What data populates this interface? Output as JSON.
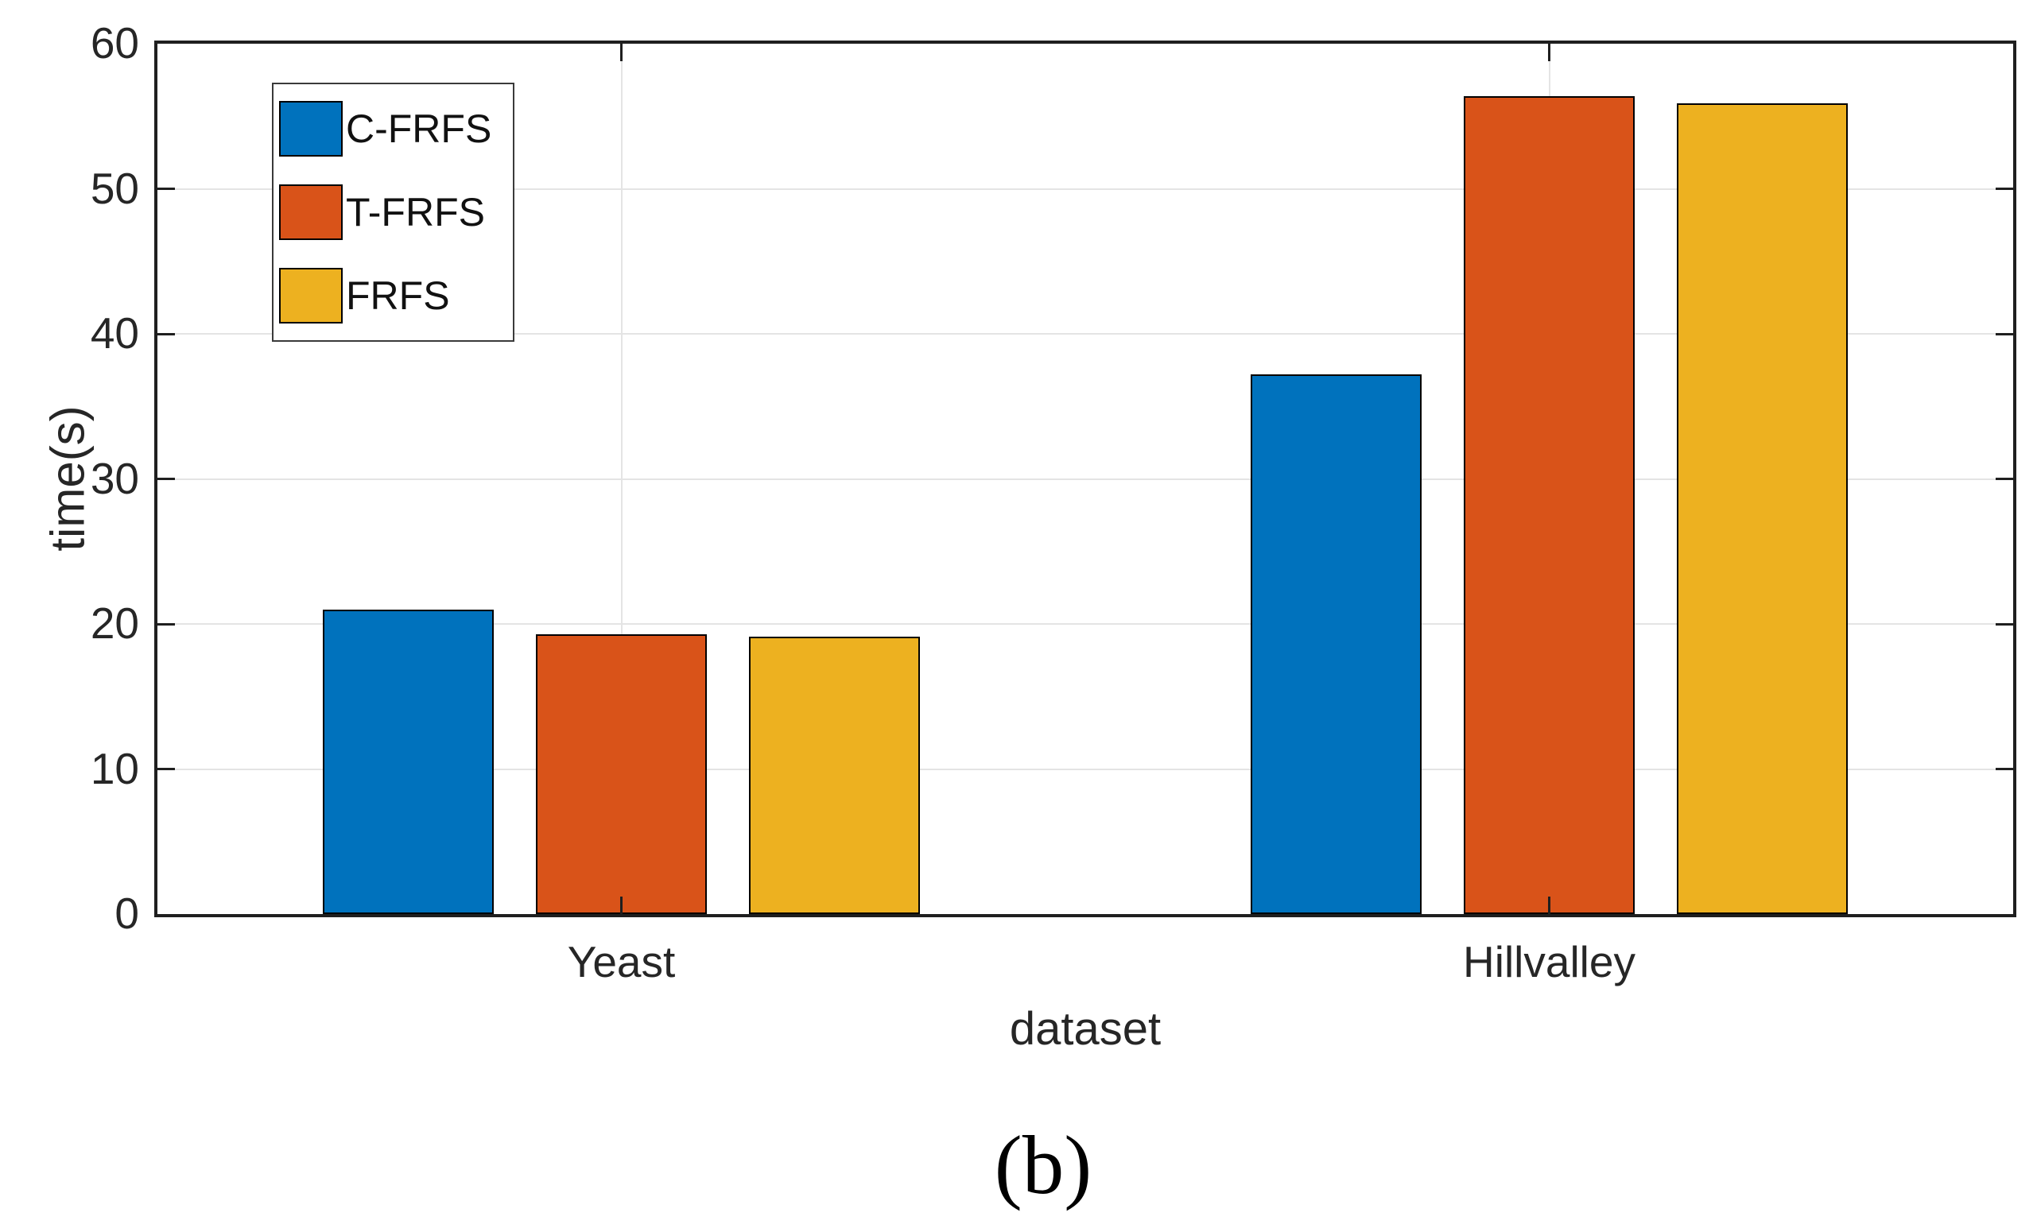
{
  "figure": {
    "caption": "(b)",
    "background_color": "#ffffff"
  },
  "axis_style": {
    "axis_color": "#1f1f1f",
    "grid_color": "#e4e4e4",
    "tick_label_color": "#262626",
    "bar_edge_color": "#000000"
  },
  "legend": {
    "position": "top-left inside plot",
    "entries": [
      {
        "label": "C-FRFS",
        "color": "#0072BD"
      },
      {
        "label": "T-FRFS",
        "color": "#D95319"
      },
      {
        "label": "FRFS",
        "color": "#EDB120"
      }
    ]
  },
  "chart_data": {
    "type": "bar",
    "title": "",
    "xlabel": "dataset",
    "ylabel": "time(s)",
    "categories": [
      "Yeast",
      "Hillvalley"
    ],
    "series": [
      {
        "name": "C-FRFS",
        "color": "#0072BD",
        "values": [
          21.0,
          37.2
        ]
      },
      {
        "name": "T-FRFS",
        "color": "#D95319",
        "values": [
          19.3,
          56.4
        ]
      },
      {
        "name": "FRFS",
        "color": "#EDB120",
        "values": [
          19.1,
          55.9
        ]
      }
    ],
    "ylim": [
      0,
      60
    ],
    "yticks": [
      0,
      10,
      20,
      30,
      40,
      50,
      60
    ],
    "grid": "on",
    "legend_position": "northwest"
  }
}
